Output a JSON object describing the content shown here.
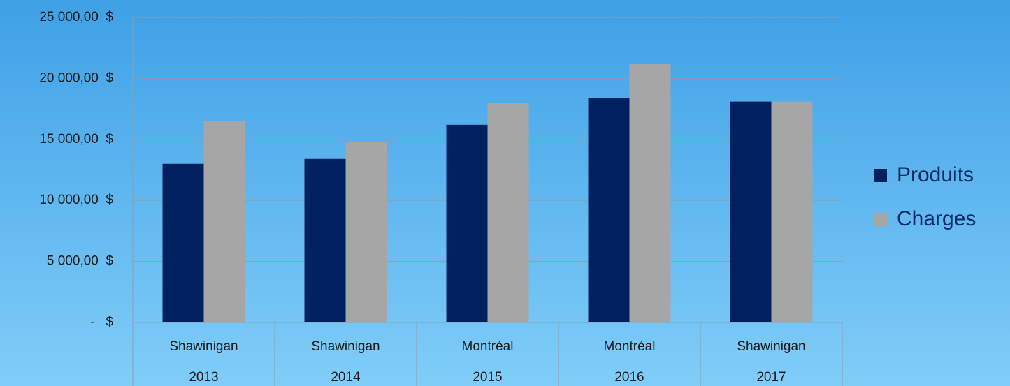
{
  "chart_data": {
    "type": "bar",
    "categories": [
      [
        "Shawinigan",
        "2013"
      ],
      [
        "Shawinigan",
        "2014"
      ],
      [
        "Montréal",
        "2015"
      ],
      [
        "Montréal",
        "2016"
      ],
      [
        "Shawinigan",
        "2017"
      ]
    ],
    "series": [
      {
        "name": "Produits",
        "color": "#002060",
        "values": [
          13000,
          13400,
          16200,
          18400,
          18100
        ]
      },
      {
        "name": "Charges",
        "color": "#a6a6a6",
        "values": [
          16500,
          14750,
          18000,
          21200,
          18100
        ]
      }
    ],
    "ylim": [
      0,
      25000
    ],
    "yticks": [
      {
        "value": 0,
        "label": "-   $"
      },
      {
        "value": 5000,
        "label": "5 000,00  $"
      },
      {
        "value": 10000,
        "label": "10 000,00  $"
      },
      {
        "value": 15000,
        "label": "15 000,00  $"
      },
      {
        "value": 20000,
        "label": "20 000,00  $"
      },
      {
        "value": 25000,
        "label": "25 000,00  $"
      }
    ],
    "grid": true,
    "legend": "right"
  }
}
